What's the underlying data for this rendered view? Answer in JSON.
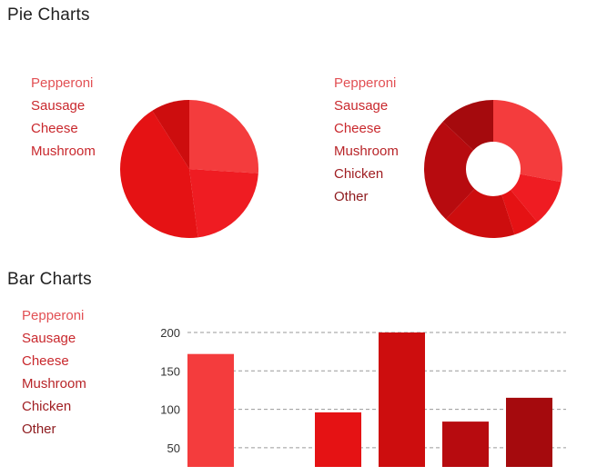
{
  "pie_section": {
    "title": "Pie Charts"
  },
  "bar_section": {
    "title": "Bar Charts"
  },
  "chart_data": [
    {
      "type": "pie",
      "categories": [
        "Pepperoni",
        "Sausage",
        "Cheese",
        "Mushroom"
      ],
      "values": [
        26,
        22,
        43,
        9
      ],
      "colors": [
        "#f43c3d",
        "#ef1c22",
        "#e51214",
        "#cd0d0e"
      ],
      "legend_colors": [
        "#e25054",
        "#c9282d",
        "#c9282d",
        "#c9282d"
      ],
      "legend": "left"
    },
    {
      "type": "pie",
      "variant": "donut",
      "categories": [
        "Pepperoni",
        "Sausage",
        "Cheese",
        "Mushroom",
        "Chicken",
        "Other"
      ],
      "values": [
        28,
        11,
        6,
        17,
        25,
        13
      ],
      "colors": [
        "#f43c3d",
        "#ef1c22",
        "#e51214",
        "#cd0d0e",
        "#b70b0f",
        "#a50a0d"
      ],
      "legend_colors": [
        "#e25054",
        "#c9282d",
        "#c9282d",
        "#b82428",
        "#a01e22",
        "#8e1b1e"
      ],
      "legend": "left"
    },
    {
      "type": "bar",
      "categories": [
        "Pepperoni",
        "Sausage",
        "Cheese",
        "Mushroom",
        "Chicken",
        "Other"
      ],
      "values": [
        172,
        0,
        96,
        200,
        84,
        115
      ],
      "colors": [
        "#f43c3d",
        "#ef1c22",
        "#e51214",
        "#cd0d0e",
        "#b70b0f",
        "#a50a0d"
      ],
      "legend_colors": [
        "#e25054",
        "#c9282d",
        "#c9282d",
        "#b82428",
        "#a01e22",
        "#8e1b1e"
      ],
      "yticks": [
        200,
        150,
        100,
        50
      ],
      "ylim": [
        25,
        200
      ],
      "grid": true,
      "legend": "left"
    }
  ]
}
